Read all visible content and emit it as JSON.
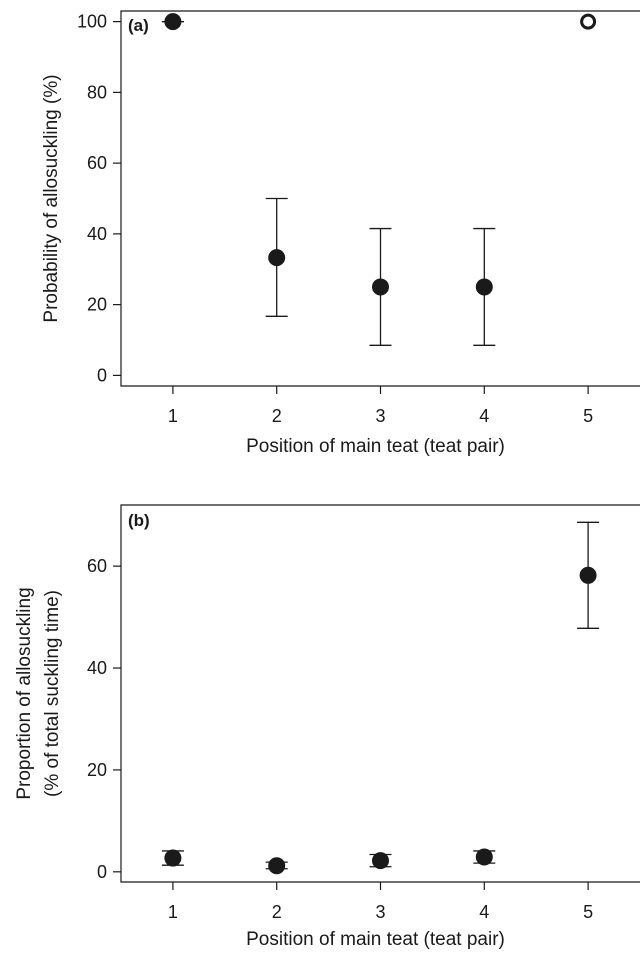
{
  "chart_data": [
    {
      "type": "scatter",
      "panel_label": "(a)",
      "xlabel": "Position of main teat (teat pair)",
      "ylabel": "Probability of allosuckling (%)",
      "x_ticks": [
        "1",
        "2",
        "3",
        "4",
        "5"
      ],
      "y_ticks": [
        "0",
        "20",
        "40",
        "60",
        "80",
        "100"
      ],
      "xlim": [
        0.5,
        5.5
      ],
      "ylim": [
        -3,
        103
      ],
      "points": [
        {
          "x": 1,
          "y": 100,
          "lower": 100,
          "upper": 100,
          "filled": true
        },
        {
          "x": 2,
          "y": 33.3,
          "lower": 16.7,
          "upper": 50,
          "filled": true
        },
        {
          "x": 3,
          "y": 25,
          "lower": 8.5,
          "upper": 41.5,
          "filled": true
        },
        {
          "x": 4,
          "y": 25,
          "lower": 8.5,
          "upper": 41.5,
          "filled": true
        },
        {
          "x": 5,
          "y": 100,
          "lower": null,
          "upper": null,
          "filled": false
        }
      ],
      "grid": false
    },
    {
      "type": "scatter",
      "panel_label": "(b)",
      "xlabel": "Position of main teat (teat pair)",
      "ylabel_lines": [
        "Proportion of allosuckling",
        "(% of total suckling time)"
      ],
      "x_ticks": [
        "1",
        "2",
        "3",
        "4",
        "5"
      ],
      "y_ticks": [
        "0",
        "20",
        "40",
        "60"
      ],
      "xlim": [
        0.5,
        5.5
      ],
      "ylim": [
        -2,
        72
      ],
      "points": [
        {
          "x": 1,
          "y": 2.7,
          "lower": 1.3,
          "upper": 4.1,
          "filled": true
        },
        {
          "x": 2,
          "y": 1.2,
          "lower": 0.6,
          "upper": 1.9,
          "filled": true
        },
        {
          "x": 3,
          "y": 2.2,
          "lower": 1.0,
          "upper": 3.4,
          "filled": true
        },
        {
          "x": 4,
          "y": 2.9,
          "lower": 1.7,
          "upper": 4.1,
          "filled": true
        },
        {
          "x": 5,
          "y": 58.2,
          "lower": 47.8,
          "upper": 68.6,
          "filled": true
        }
      ],
      "grid": false
    }
  ]
}
